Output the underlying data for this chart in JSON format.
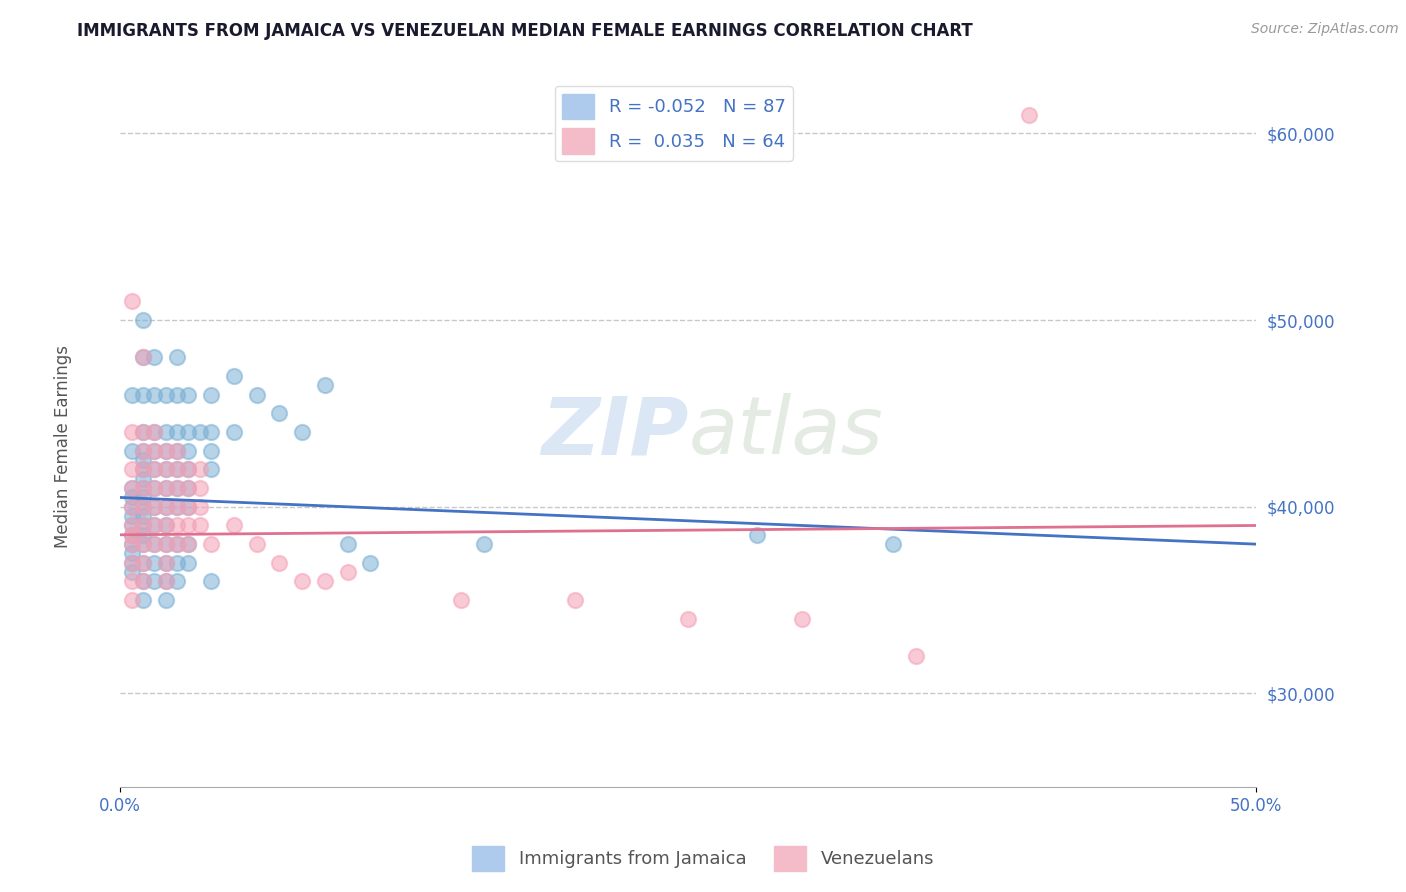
{
  "title": "IMMIGRANTS FROM JAMAICA VS VENEZUELAN MEDIAN FEMALE EARNINGS CORRELATION CHART",
  "source": "Source: ZipAtlas.com",
  "ylabel": "Median Female Earnings",
  "y_ticks": [
    30000,
    40000,
    50000,
    60000
  ],
  "xlim": [
    0.0,
    0.5
  ],
  "ylim": [
    25000,
    63000
  ],
  "watermark_zip": "ZIP",
  "watermark_atlas": "atlas",
  "legend_labels_bottom": [
    "Immigrants from Jamaica",
    "Venezuelans"
  ],
  "jamaica_color": "#7bafd4",
  "venezuela_color": "#f4a0b5",
  "jamaica_line_color": "#4472c4",
  "venezuela_line_color": "#e07090",
  "jamaica_R": -0.052,
  "jamaica_N": 87,
  "venezuela_R": 0.035,
  "venezuela_N": 64,
  "background_color": "#ffffff",
  "grid_color": "#c8c8c8",
  "title_color": "#1a1a2e",
  "axis_label_color": "#4472c4",
  "jamaica_scatter": [
    [
      0.005,
      46000
    ],
    [
      0.005,
      43000
    ],
    [
      0.005,
      41000
    ],
    [
      0.005,
      40500
    ],
    [
      0.005,
      40000
    ],
    [
      0.005,
      39500
    ],
    [
      0.005,
      39000
    ],
    [
      0.005,
      38500
    ],
    [
      0.005,
      38000
    ],
    [
      0.005,
      37500
    ],
    [
      0.005,
      37000
    ],
    [
      0.005,
      36500
    ],
    [
      0.01,
      50000
    ],
    [
      0.01,
      48000
    ],
    [
      0.01,
      46000
    ],
    [
      0.01,
      44000
    ],
    [
      0.01,
      43000
    ],
    [
      0.01,
      42500
    ],
    [
      0.01,
      42000
    ],
    [
      0.01,
      41500
    ],
    [
      0.01,
      41000
    ],
    [
      0.01,
      40500
    ],
    [
      0.01,
      40000
    ],
    [
      0.01,
      39500
    ],
    [
      0.01,
      39000
    ],
    [
      0.01,
      38500
    ],
    [
      0.01,
      38000
    ],
    [
      0.01,
      37000
    ],
    [
      0.01,
      36000
    ],
    [
      0.01,
      35000
    ],
    [
      0.015,
      48000
    ],
    [
      0.015,
      46000
    ],
    [
      0.015,
      44000
    ],
    [
      0.015,
      43000
    ],
    [
      0.015,
      42000
    ],
    [
      0.015,
      41000
    ],
    [
      0.015,
      40000
    ],
    [
      0.015,
      39000
    ],
    [
      0.015,
      38000
    ],
    [
      0.015,
      37000
    ],
    [
      0.015,
      36000
    ],
    [
      0.02,
      46000
    ],
    [
      0.02,
      44000
    ],
    [
      0.02,
      43000
    ],
    [
      0.02,
      42000
    ],
    [
      0.02,
      41000
    ],
    [
      0.02,
      40000
    ],
    [
      0.02,
      39000
    ],
    [
      0.02,
      38000
    ],
    [
      0.02,
      37000
    ],
    [
      0.02,
      36000
    ],
    [
      0.02,
      35000
    ],
    [
      0.025,
      48000
    ],
    [
      0.025,
      46000
    ],
    [
      0.025,
      44000
    ],
    [
      0.025,
      43000
    ],
    [
      0.025,
      42000
    ],
    [
      0.025,
      41000
    ],
    [
      0.025,
      40000
    ],
    [
      0.025,
      38000
    ],
    [
      0.025,
      37000
    ],
    [
      0.025,
      36000
    ],
    [
      0.03,
      46000
    ],
    [
      0.03,
      44000
    ],
    [
      0.03,
      43000
    ],
    [
      0.03,
      42000
    ],
    [
      0.03,
      41000
    ],
    [
      0.03,
      40000
    ],
    [
      0.03,
      38000
    ],
    [
      0.03,
      37000
    ],
    [
      0.035,
      44000
    ],
    [
      0.04,
      46000
    ],
    [
      0.04,
      44000
    ],
    [
      0.04,
      43000
    ],
    [
      0.04,
      42000
    ],
    [
      0.04,
      36000
    ],
    [
      0.05,
      47000
    ],
    [
      0.05,
      44000
    ],
    [
      0.06,
      46000
    ],
    [
      0.07,
      45000
    ],
    [
      0.08,
      44000
    ],
    [
      0.09,
      46500
    ],
    [
      0.1,
      38000
    ],
    [
      0.11,
      37000
    ],
    [
      0.16,
      38000
    ],
    [
      0.28,
      38500
    ],
    [
      0.34,
      38000
    ]
  ],
  "venezuela_scatter": [
    [
      0.005,
      51000
    ],
    [
      0.005,
      44000
    ],
    [
      0.005,
      42000
    ],
    [
      0.005,
      41000
    ],
    [
      0.005,
      40000
    ],
    [
      0.005,
      39000
    ],
    [
      0.005,
      38500
    ],
    [
      0.005,
      38000
    ],
    [
      0.005,
      37000
    ],
    [
      0.005,
      36000
    ],
    [
      0.005,
      35000
    ],
    [
      0.01,
      48000
    ],
    [
      0.01,
      44000
    ],
    [
      0.01,
      43000
    ],
    [
      0.01,
      42000
    ],
    [
      0.01,
      41000
    ],
    [
      0.01,
      40000
    ],
    [
      0.01,
      39000
    ],
    [
      0.01,
      38000
    ],
    [
      0.01,
      37000
    ],
    [
      0.01,
      36000
    ],
    [
      0.015,
      44000
    ],
    [
      0.015,
      43000
    ],
    [
      0.015,
      42000
    ],
    [
      0.015,
      41000
    ],
    [
      0.015,
      40000
    ],
    [
      0.015,
      39000
    ],
    [
      0.015,
      38000
    ],
    [
      0.02,
      43000
    ],
    [
      0.02,
      42000
    ],
    [
      0.02,
      41000
    ],
    [
      0.02,
      40000
    ],
    [
      0.02,
      39000
    ],
    [
      0.02,
      38000
    ],
    [
      0.02,
      37000
    ],
    [
      0.02,
      36000
    ],
    [
      0.025,
      43000
    ],
    [
      0.025,
      42000
    ],
    [
      0.025,
      41000
    ],
    [
      0.025,
      40000
    ],
    [
      0.025,
      39000
    ],
    [
      0.025,
      38000
    ],
    [
      0.03,
      42000
    ],
    [
      0.03,
      41000
    ],
    [
      0.03,
      40000
    ],
    [
      0.03,
      39000
    ],
    [
      0.03,
      38000
    ],
    [
      0.035,
      42000
    ],
    [
      0.035,
      41000
    ],
    [
      0.035,
      40000
    ],
    [
      0.035,
      39000
    ],
    [
      0.04,
      38000
    ],
    [
      0.05,
      39000
    ],
    [
      0.06,
      38000
    ],
    [
      0.07,
      37000
    ],
    [
      0.08,
      36000
    ],
    [
      0.09,
      36000
    ],
    [
      0.1,
      36500
    ],
    [
      0.15,
      35000
    ],
    [
      0.2,
      35000
    ],
    [
      0.25,
      34000
    ],
    [
      0.3,
      34000
    ],
    [
      0.35,
      32000
    ],
    [
      0.4,
      61000
    ]
  ]
}
